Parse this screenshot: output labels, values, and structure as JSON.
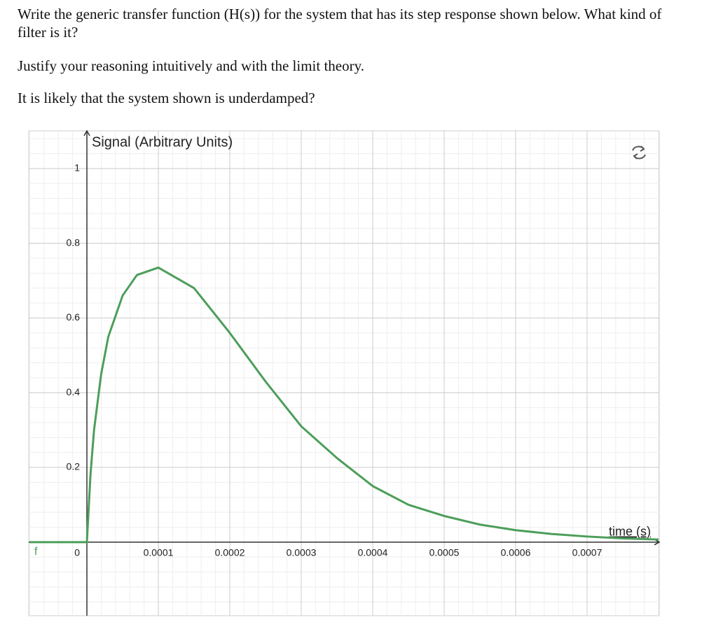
{
  "question": [
    "Write the generic transfer function (H(s)) for the system that has its step response shown below. What kind of filter is it?",
    "Justify your reasoning intuitively and with the limit theory.",
    "It is likely that the system shown is underdamped?"
  ],
  "chart_data": {
    "type": "line",
    "y_label": "Signal (Arbitrary Units)",
    "x_label": "time (s)",
    "x": [
      -8e-05,
      0,
      5e-06,
      1e-05,
      2e-05,
      3e-05,
      5e-05,
      7e-05,
      0.0001,
      0.00015,
      0.0002,
      0.00025,
      0.0003,
      0.00035,
      0.0004,
      0.00045,
      0.0005,
      0.00055,
      0.0006,
      0.00065,
      0.0007,
      0.00075,
      0.0008
    ],
    "series": [
      {
        "name": "f",
        "color": "#4c9e5a",
        "values": [
          0,
          0,
          0.18,
          0.3,
          0.45,
          0.55,
          0.66,
          0.715,
          0.735,
          0.68,
          0.56,
          0.43,
          0.31,
          0.225,
          0.15,
          0.1,
          0.07,
          0.047,
          0.032,
          0.022,
          0.015,
          0.01,
          0.007
        ]
      }
    ],
    "xlim": [
      -8.14e-05,
      0.000801
    ],
    "ylim": [
      -0.197,
      1.101
    ],
    "xticks": [
      0.0001,
      0.0002,
      0.0003,
      0.0004,
      0.0005,
      0.0006,
      0.0007
    ],
    "yticks": [
      0,
      0.2,
      0.4,
      0.6,
      0.8,
      1
    ],
    "grid": true
  }
}
